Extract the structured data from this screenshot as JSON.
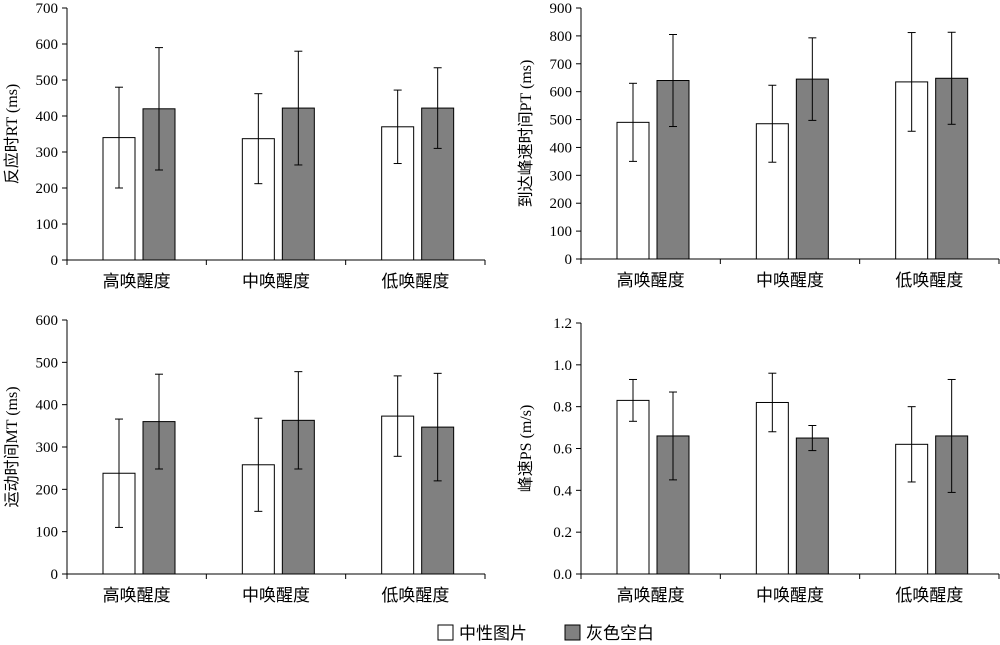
{
  "legend": [
    {
      "label": "中性图片",
      "color": "#ffffff"
    },
    {
      "label": "灰色空白",
      "color": "#808080"
    }
  ],
  "chart_data": [
    {
      "type": "bar",
      "ylabel": "反应时RT (ms)",
      "categories": [
        "高唤醒度",
        "中唤醒度",
        "低唤醒度"
      ],
      "ylim": [
        0,
        700
      ],
      "ytick_step": 100,
      "ytick_decimals": 0,
      "series": [
        {
          "name": "中性图片",
          "values": [
            340,
            337,
            370
          ],
          "errors": [
            140,
            125,
            102
          ]
        },
        {
          "name": "灰色空白",
          "values": [
            420,
            422,
            422
          ],
          "errors": [
            170,
            158,
            112
          ]
        }
      ]
    },
    {
      "type": "bar",
      "ylabel": "到达峰速时间PT (ms)",
      "categories": [
        "高唤醒度",
        "中唤醒度",
        "低唤醒度"
      ],
      "ylim": [
        0,
        900
      ],
      "ytick_step": 100,
      "ytick_decimals": 0,
      "series": [
        {
          "name": "中性图片",
          "values": [
            490,
            485,
            635
          ],
          "errors": [
            140,
            138,
            177
          ]
        },
        {
          "name": "灰色空白",
          "values": [
            640,
            645,
            648
          ],
          "errors": [
            165,
            148,
            165
          ]
        }
      ]
    },
    {
      "type": "bar",
      "ylabel": "运动时间MT (ms)",
      "categories": [
        "高唤醒度",
        "中唤醒度",
        "低唤醒度"
      ],
      "ylim": [
        0,
        600
      ],
      "ytick_step": 100,
      "ytick_decimals": 0,
      "series": [
        {
          "name": "中性图片",
          "values": [
            238,
            258,
            373
          ],
          "errors": [
            128,
            110,
            95
          ]
        },
        {
          "name": "灰色空白",
          "values": [
            360,
            363,
            347
          ],
          "errors": [
            112,
            115,
            127
          ]
        }
      ]
    },
    {
      "type": "bar",
      "ylabel": "峰速PS (m/s)",
      "categories": [
        "高唤醒度",
        "中唤醒度",
        "低唤醒度"
      ],
      "ylim": [
        0,
        1.2
      ],
      "ytick_step": 0.2,
      "ytick_decimals": 1,
      "series": [
        {
          "name": "中性图片",
          "values": [
            0.83,
            0.82,
            0.62
          ],
          "errors": [
            0.1,
            0.14,
            0.18
          ]
        },
        {
          "name": "灰色空白",
          "values": [
            0.66,
            0.65,
            0.66
          ],
          "errors": [
            0.21,
            0.06,
            0.27
          ]
        }
      ]
    }
  ]
}
